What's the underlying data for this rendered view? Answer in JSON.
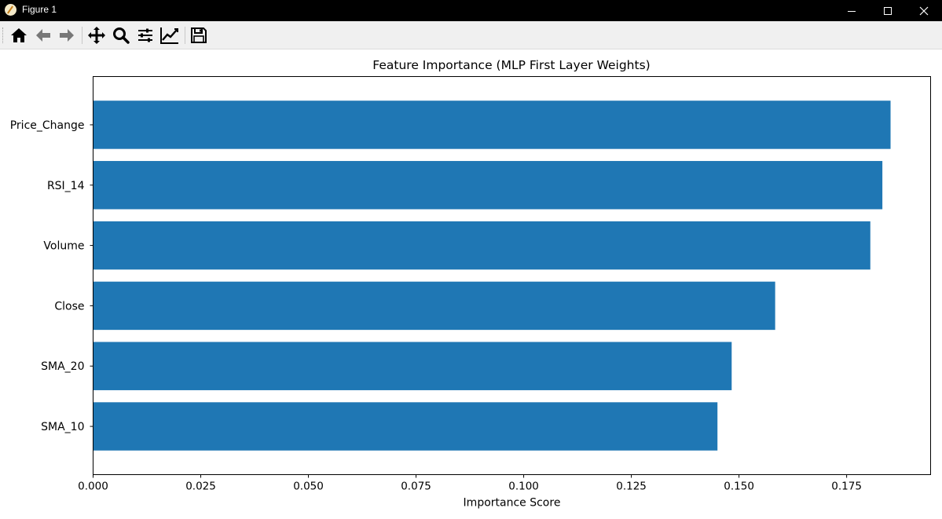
{
  "window": {
    "title": "Figure 1",
    "minimize_icon": "minimize-icon",
    "maximize_icon": "maximize-icon",
    "close_icon": "close-icon"
  },
  "toolbar": {
    "buttons": [
      {
        "name": "home-icon",
        "tooltip": "Home"
      },
      {
        "name": "back-arrow-icon",
        "tooltip": "Back"
      },
      {
        "name": "forward-arrow-icon",
        "tooltip": "Forward"
      },
      {
        "name": "pan-icon",
        "tooltip": "Pan"
      },
      {
        "name": "zoom-icon",
        "tooltip": "Zoom"
      },
      {
        "name": "subplots-icon",
        "tooltip": "Subplots"
      },
      {
        "name": "edit-axis-icon",
        "tooltip": "Customize"
      },
      {
        "name": "save-icon",
        "tooltip": "Save"
      }
    ]
  },
  "chart_data": {
    "type": "bar",
    "orientation": "horizontal",
    "title": "Feature Importance (MLP First Layer Weights)",
    "xlabel": "Importance Score",
    "ylabel": "",
    "categories": [
      "SMA_10",
      "SMA_20",
      "Close",
      "Volume",
      "RSI_14",
      "Price_Change"
    ],
    "values": [
      0.145,
      0.1483,
      0.1584,
      0.1805,
      0.1833,
      0.1852
    ],
    "xlim": [
      0,
      0.1945
    ],
    "xticks": [
      "0.000",
      "0.025",
      "0.050",
      "0.075",
      "0.100",
      "0.125",
      "0.150",
      "0.175"
    ],
    "bar_color": "#1f77b4",
    "grid": false,
    "legend": "none"
  }
}
